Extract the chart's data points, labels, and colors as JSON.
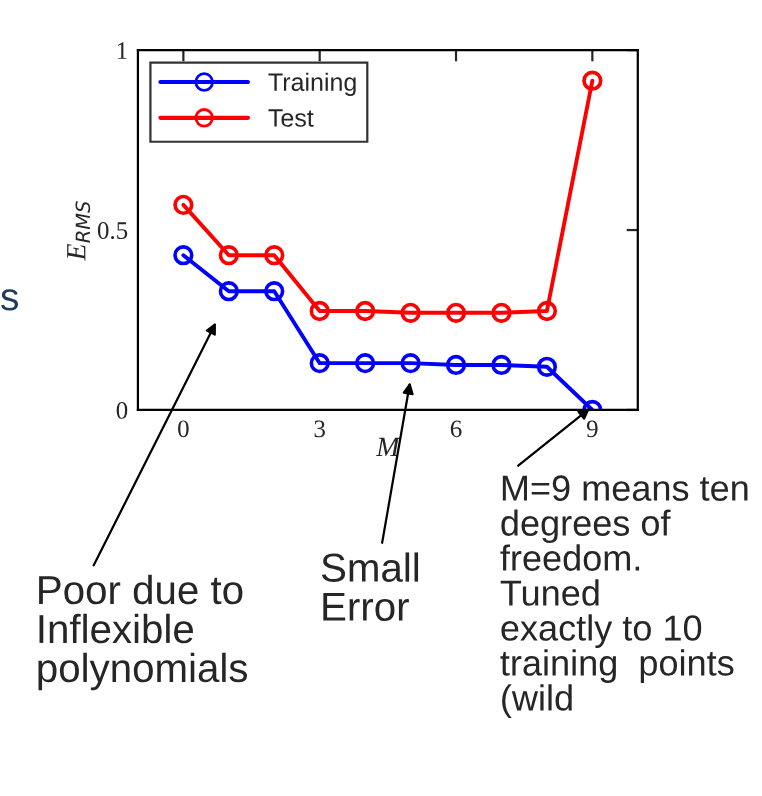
{
  "chart_data": {
    "type": "line",
    "xlabel": "M",
    "ylabel": "E$_{RMS}$",
    "x": [
      0,
      1,
      2,
      3,
      4,
      5,
      6,
      7,
      8,
      9
    ],
    "series": [
      {
        "name": "Training",
        "color": "#0000ff",
        "values": [
          0.43,
          0.33,
          0.33,
          0.13,
          0.13,
          0.13,
          0.125,
          0.125,
          0.12,
          0.0
        ]
      },
      {
        "name": "Test",
        "color": "#ff0000",
        "values": [
          0.57,
          0.43,
          0.43,
          0.275,
          0.275,
          0.27,
          0.27,
          0.27,
          0.275,
          0.915
        ]
      }
    ],
    "xlim": [
      -1,
      10
    ],
    "ylim": [
      0,
      1
    ],
    "xticks": [
      0,
      3,
      6,
      9
    ],
    "yticks": [
      0,
      0.5,
      1
    ],
    "grid": false,
    "legend": "top left",
    "marker": "circle",
    "line_style": "solid",
    "annotations": [
      "s",
      "Poor due to\nInflexible\npolynomials",
      {
        "text": "Small\nError",
        "x": 5,
        "y": 0.085
      },
      {
        "text": "M=9 means ten\ndegrees of\nfreedom.\nTuned\nexactly to 10\ntraining  points\n(wild",
        "x": 9,
        "y": 0.01
      }
    ]
  }
}
